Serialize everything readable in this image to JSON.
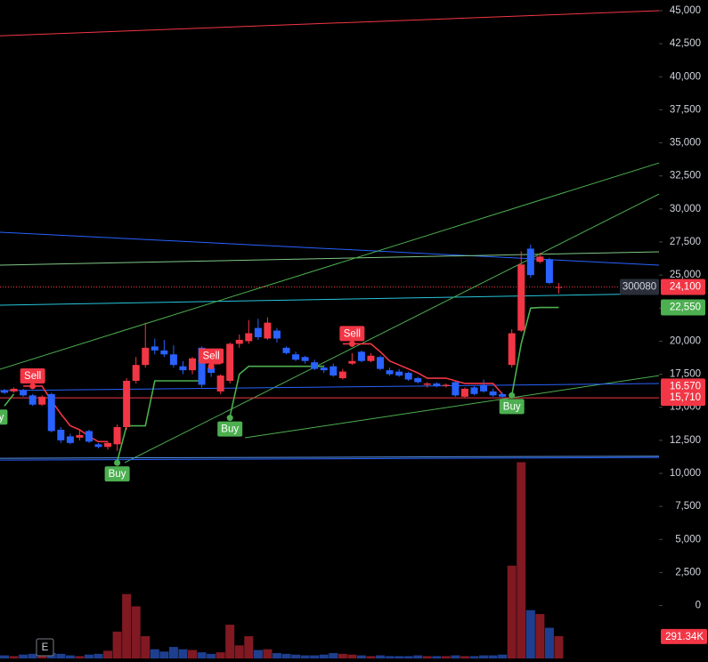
{
  "chart_data": {
    "type": "candlestick",
    "symbol": "300080",
    "badge": "E",
    "ylim": [
      -4269,
      45808
    ],
    "yticks": [
      0,
      {
        "value": 2500,
        "label": "2,500"
      },
      {
        "value": 5000,
        "label": "5,000"
      },
      {
        "value": 7500,
        "label": "7,500"
      },
      {
        "value": 10000,
        "label": "10,000"
      },
      {
        "value": 12500,
        "label": "12,500"
      },
      {
        "value": 15000,
        "label": "15,000"
      },
      {
        "value": 17500,
        "label": "17,500"
      },
      {
        "value": 20000,
        "label": "20,000"
      },
      {
        "value": 22500,
        "label": "22,500"
      },
      {
        "value": 25000,
        "label": "25,000"
      },
      {
        "value": 27500,
        "label": "27,500"
      },
      {
        "value": 30000,
        "label": "30,000"
      },
      {
        "value": 32500,
        "label": "32,500"
      },
      {
        "value": 35000,
        "label": "35,000"
      },
      {
        "value": 37500,
        "label": "37,500"
      },
      {
        "value": 40000,
        "label": "40,000"
      },
      {
        "value": 42500,
        "label": "42,500"
      },
      {
        "value": 45000,
        "label": "45,000"
      }
    ],
    "up_color": "#f23645",
    "down_color": "#2962ff",
    "candles": [
      [
        16300,
        16400,
        16000,
        16100
      ],
      [
        16200,
        16500,
        16100,
        16400
      ],
      [
        16300,
        16400,
        15800,
        15900
      ],
      [
        15900,
        16000,
        15100,
        15200
      ],
      [
        15200,
        15900,
        15100,
        15800
      ],
      [
        16000,
        16100,
        13100,
        13200
      ],
      [
        13300,
        13500,
        12300,
        12500
      ],
      [
        12800,
        13000,
        12200,
        12300
      ],
      [
        12700,
        13300,
        12500,
        12900
      ],
      [
        13200,
        13300,
        12300,
        12400
      ],
      [
        12200,
        12300,
        11900,
        12000
      ],
      [
        12000,
        12400,
        11800,
        12300
      ],
      [
        12200,
        13700,
        11700,
        13500
      ],
      [
        13500,
        17200,
        13300,
        17000
      ],
      [
        17000,
        18800,
        16800,
        18200
      ],
      [
        18200,
        21400,
        18000,
        19500
      ],
      [
        19600,
        20200,
        19000,
        19300
      ],
      [
        19300,
        20100,
        18800,
        19000
      ],
      [
        19000,
        19700,
        18000,
        18200
      ],
      [
        18100,
        18500,
        17500,
        17800
      ],
      [
        17800,
        18800,
        17500,
        18700
      ],
      [
        19500,
        19600,
        16500,
        16700
      ],
      [
        18000,
        18400,
        17300,
        17600
      ],
      [
        16200,
        17500,
        16000,
        17400
      ],
      [
        17000,
        19900,
        16800,
        19800
      ],
      [
        19800,
        20500,
        19500,
        20100
      ],
      [
        20000,
        21600,
        19800,
        20600
      ],
      [
        21000,
        21700,
        20100,
        20300
      ],
      [
        20200,
        21800,
        20100,
        21400
      ],
      [
        20800,
        21000,
        19900,
        20200
      ],
      [
        19500,
        19600,
        19000,
        19100
      ],
      [
        19000,
        19200,
        18500,
        18600
      ],
      [
        18800,
        18900,
        18300,
        18500
      ],
      [
        18400,
        18600,
        17800,
        17900
      ],
      [
        18000,
        18200,
        17600,
        17800
      ],
      [
        18100,
        18300,
        17300,
        17400
      ],
      [
        17200,
        17900,
        17100,
        17700
      ],
      [
        18300,
        19100,
        18200,
        18500
      ],
      [
        19200,
        19300,
        18400,
        18500
      ],
      [
        18500,
        19100,
        18400,
        18900
      ],
      [
        18800,
        18900,
        17800,
        17900
      ],
      [
        17800,
        18000,
        17400,
        17500
      ],
      [
        17700,
        17900,
        17300,
        17400
      ],
      [
        17600,
        17700,
        17000,
        17100
      ],
      [
        17200,
        17300,
        16800,
        16900
      ],
      [
        16700,
        16900,
        16500,
        16800
      ],
      [
        16800,
        16900,
        16500,
        16600
      ],
      [
        16600,
        16800,
        16500,
        16700
      ],
      [
        16900,
        17000,
        15800,
        15900
      ],
      [
        15800,
        16500,
        15700,
        16400
      ],
      [
        16500,
        16600,
        15900,
        16000
      ],
      [
        16700,
        17100,
        16100,
        16200
      ],
      [
        16200,
        16400,
        15800,
        15900
      ],
      [
        16000,
        16100,
        15700,
        15800
      ],
      [
        18200,
        20900,
        18000,
        20600
      ],
      [
        20800,
        26800,
        20700,
        25800
      ],
      [
        27000,
        27300,
        24800,
        25000
      ],
      [
        26000,
        26700,
        25900,
        26400
      ],
      [
        26200,
        26300,
        24300,
        24400
      ],
      [
        24100,
        24400,
        23600,
        24100
      ]
    ],
    "volume": [
      40000,
      30000,
      50000,
      60000,
      150000,
      70000,
      60000,
      40000,
      30000,
      50000,
      60000,
      100000,
      350000,
      840000,
      680000,
      290000,
      120000,
      90000,
      150000,
      120000,
      110000,
      80000,
      60000,
      80000,
      440000,
      170000,
      290000,
      110000,
      120000,
      70000,
      60000,
      50000,
      40000,
      40000,
      50000,
      70000,
      60000,
      50000,
      40000,
      30000,
      40000,
      30000,
      30000,
      30000,
      40000,
      30000,
      30000,
      30000,
      40000,
      30000,
      30000,
      40000,
      40000,
      50000,
      1210000,
      2560000,
      630000,
      580000,
      400000,
      291340
    ],
    "volume_lim": [
      0,
      2600000
    ],
    "volume_label": {
      "value": 291340,
      "label": "291.34K"
    },
    "stops": [
      {
        "color": "#f23645",
        "values": [
          null,
          null,
          16600,
          16600,
          16600,
          15500,
          14500,
          13600,
          13300,
          12800,
          12400,
          12400,
          null,
          null,
          null,
          null,
          null,
          null,
          null,
          null,
          null,
          18700,
          18300,
          18300,
          null,
          null,
          null,
          null,
          null,
          null,
          null,
          null,
          null,
          null,
          null,
          null,
          19800,
          19800,
          19800,
          19800,
          19200,
          18500,
          18200,
          17900,
          17600,
          17200,
          17200,
          17200,
          17000,
          16800,
          16800,
          16800,
          16800,
          16000,
          null,
          null,
          null,
          null,
          null,
          null
        ]
      },
      {
        "color": "#4caf50",
        "values": [
          15100,
          16000,
          null,
          null,
          null,
          null,
          null,
          null,
          null,
          null,
          null,
          null,
          10900,
          13600,
          13600,
          13600,
          17000,
          17000,
          17000,
          17000,
          17000,
          17000,
          null,
          null,
          14300,
          17500,
          18100,
          18100,
          18100,
          18100,
          18100,
          18100,
          18100,
          18100,
          18100,
          null,
          null,
          null,
          null,
          null,
          null,
          null,
          null,
          null,
          null,
          null,
          null,
          null,
          null,
          null,
          null,
          null,
          null,
          null,
          15900,
          19800,
          22500,
          22550,
          22550,
          22550
        ]
      }
    ],
    "markers": [
      {
        "label": "Sell",
        "index": 3,
        "price": 16600,
        "color": "#f23645"
      },
      {
        "label": "Sell",
        "index": 22,
        "price": 18100,
        "color": "#f23645"
      },
      {
        "label": "Sell",
        "index": 37,
        "price": 19800,
        "color": "#f23645"
      },
      {
        "label": "Buy",
        "index": -1,
        "price": 15100,
        "color": "#4caf50"
      },
      {
        "label": "Buy",
        "index": 12,
        "price": 10800,
        "color": "#4caf50"
      },
      {
        "label": "Buy",
        "index": 24,
        "price": 14200,
        "color": "#4caf50"
      },
      {
        "label": "Buy",
        "index": 54,
        "price": 15900,
        "color": "#4caf50"
      }
    ],
    "lines": [
      {
        "color": "#f23645",
        "start_index": -0.5,
        "start_price": 43100,
        "end_index": 69.7,
        "end_price": 45000
      },
      {
        "color": "#2962ff",
        "start_index": -0.5,
        "start_price": 28240,
        "end_index": 69.7,
        "end_price": 25750
      },
      {
        "color": "#81c784",
        "start_index": -0.5,
        "start_price": 25750,
        "end_index": 69.7,
        "end_price": 26760
      },
      {
        "color": "#26c6da",
        "start_index": -0.5,
        "start_price": 22720,
        "end_index": 69.7,
        "end_price": 23600
      },
      {
        "color": "#4caf50",
        "start_index": -0.5,
        "start_price": 17870,
        "end_index": 69.7,
        "end_price": 33490
      },
      {
        "color": "#4caf50",
        "start_index": 12.8,
        "start_price": 10810,
        "end_index": 69.7,
        "end_price": 31140
      },
      {
        "color": "#4caf50",
        "start_index": 25.6,
        "start_price": 12690,
        "end_index": 69.7,
        "end_price": 17400
      },
      {
        "color": "#2962ff",
        "start_index": -0.5,
        "start_price": 16260,
        "end_index": 69.7,
        "end_price": 16800
      },
      {
        "color": "#f23645",
        "start_index": -0.5,
        "start_price": 15710,
        "end_index": 69.7,
        "end_price": 15710
      },
      {
        "color": "#5b9cf6",
        "start_index": -0.5,
        "start_price": 11140,
        "end_index": 69.7,
        "end_price": 11300
      },
      {
        "color": "#2962ff",
        "start_index": -0.5,
        "start_price": 11000,
        "end_index": 69.7,
        "end_price": 11200
      }
    ],
    "price_labels": [
      {
        "value": 24100,
        "label": "24,100",
        "color": "#f23645",
        "line_style": "dotted"
      },
      {
        "value": 22550,
        "label": "22,550",
        "color": "#4caf50"
      },
      {
        "value": 16570,
        "label": "16,570",
        "color": "#f23645"
      },
      {
        "value": 15710,
        "label": "15,710",
        "color": "#f23645"
      }
    ]
  }
}
